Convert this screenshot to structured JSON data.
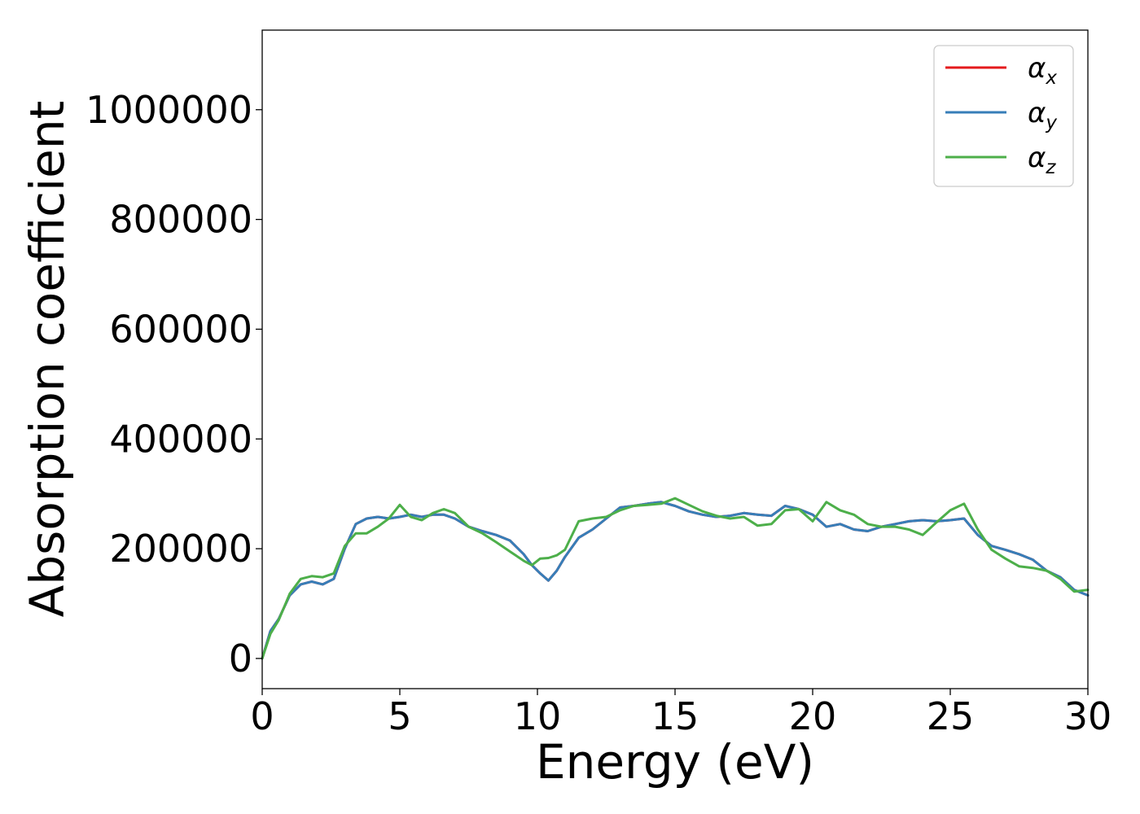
{
  "chart_data": {
    "type": "line",
    "title": "",
    "xlabel": "Energy (eV)",
    "ylabel": "Absorption coefficient",
    "xlim": [
      0,
      30
    ],
    "ylim": [
      -55000,
      1145000
    ],
    "xticks": [
      0,
      5,
      10,
      15,
      20,
      25,
      30
    ],
    "xtick_labels": [
      "0",
      "5",
      "10",
      "15",
      "20",
      "25",
      "30"
    ],
    "yticks": [
      0,
      200000,
      400000,
      600000,
      800000,
      1000000
    ],
    "ytick_labels": [
      "0",
      "200000",
      "400000",
      "600000",
      "800000",
      "1000000"
    ],
    "grid": false,
    "legend_position": "top-right",
    "series": [
      {
        "name": "α_x",
        "legend_symbol": "α",
        "legend_sub": "x",
        "color": "#e41a1c",
        "x": [
          0,
          0.3,
          0.6,
          1,
          1.4,
          1.8,
          2.2,
          2.6,
          3,
          3.4,
          3.8,
          4.2,
          4.6,
          5,
          5.4,
          5.8,
          6.2,
          6.6,
          7,
          7.5,
          8,
          8.5,
          9,
          9.5,
          9.8,
          10.1,
          10.4,
          10.7,
          11,
          11.5,
          12,
          12.5,
          13,
          13.5,
          14,
          14.5,
          15,
          15.5,
          16,
          16.5,
          17,
          17.5,
          18,
          18.5,
          19,
          19.5,
          20,
          20.5,
          21,
          21.5,
          22,
          22.5,
          23,
          23.5,
          24,
          24.5,
          25,
          25.5,
          26,
          26.5,
          27,
          27.5,
          28,
          28.5,
          29,
          29.5,
          30
        ],
        "values": [
          0,
          50000,
          72000,
          115000,
          135000,
          140000,
          135000,
          145000,
          200000,
          245000,
          255000,
          258000,
          255000,
          258000,
          262000,
          258000,
          262000,
          262000,
          255000,
          240000,
          232000,
          225000,
          215000,
          190000,
          170000,
          155000,
          142000,
          160000,
          185000,
          220000,
          235000,
          255000,
          275000,
          278000,
          282000,
          285000,
          278000,
          268000,
          262000,
          258000,
          260000,
          265000,
          262000,
          260000,
          278000,
          272000,
          262000,
          240000,
          245000,
          235000,
          232000,
          240000,
          245000,
          250000,
          252000,
          250000,
          252000,
          255000,
          225000,
          205000,
          198000,
          190000,
          180000,
          160000,
          148000,
          125000,
          115000
        ]
      },
      {
        "name": "α_y",
        "legend_symbol": "α",
        "legend_sub": "y",
        "color": "#377eb8",
        "x": [
          0,
          0.3,
          0.6,
          1,
          1.4,
          1.8,
          2.2,
          2.6,
          3,
          3.4,
          3.8,
          4.2,
          4.6,
          5,
          5.4,
          5.8,
          6.2,
          6.6,
          7,
          7.5,
          8,
          8.5,
          9,
          9.5,
          9.8,
          10.1,
          10.4,
          10.7,
          11,
          11.5,
          12,
          12.5,
          13,
          13.5,
          14,
          14.5,
          15,
          15.5,
          16,
          16.5,
          17,
          17.5,
          18,
          18.5,
          19,
          19.5,
          20,
          20.5,
          21,
          21.5,
          22,
          22.5,
          23,
          23.5,
          24,
          24.5,
          25,
          25.5,
          26,
          26.5,
          27,
          27.5,
          28,
          28.5,
          29,
          29.5,
          30
        ],
        "values": [
          0,
          50000,
          72000,
          115000,
          135000,
          140000,
          135000,
          145000,
          200000,
          245000,
          255000,
          258000,
          255000,
          258000,
          262000,
          258000,
          262000,
          262000,
          255000,
          240000,
          232000,
          225000,
          215000,
          190000,
          170000,
          155000,
          142000,
          160000,
          185000,
          220000,
          235000,
          255000,
          275000,
          278000,
          282000,
          285000,
          278000,
          268000,
          262000,
          258000,
          260000,
          265000,
          262000,
          260000,
          278000,
          272000,
          262000,
          240000,
          245000,
          235000,
          232000,
          240000,
          245000,
          250000,
          252000,
          250000,
          252000,
          255000,
          225000,
          205000,
          198000,
          190000,
          180000,
          160000,
          148000,
          125000,
          115000
        ]
      },
      {
        "name": "α_z",
        "legend_symbol": "α",
        "legend_sub": "z",
        "color": "#4daf4a",
        "x": [
          0,
          0.3,
          0.6,
          1,
          1.4,
          1.8,
          2.2,
          2.6,
          3,
          3.4,
          3.8,
          4.2,
          4.6,
          5,
          5.4,
          5.8,
          6.2,
          6.6,
          7,
          7.5,
          8,
          8.5,
          9,
          9.5,
          9.8,
          10.1,
          10.4,
          10.7,
          11,
          11.5,
          12,
          12.5,
          13,
          13.5,
          14,
          14.5,
          15,
          15.5,
          16,
          16.5,
          17,
          17.5,
          18,
          18.5,
          19,
          19.5,
          20,
          20.5,
          21,
          21.5,
          22,
          22.5,
          23,
          23.5,
          24,
          24.5,
          25,
          25.5,
          26,
          26.5,
          27,
          27.5,
          28,
          28.5,
          29,
          29.5,
          30
        ],
        "values": [
          0,
          45000,
          70000,
          118000,
          145000,
          150000,
          148000,
          155000,
          205000,
          228000,
          228000,
          240000,
          255000,
          280000,
          258000,
          252000,
          265000,
          272000,
          265000,
          240000,
          228000,
          212000,
          195000,
          178000,
          170000,
          182000,
          183000,
          188000,
          198000,
          250000,
          255000,
          258000,
          270000,
          278000,
          280000,
          282000,
          292000,
          280000,
          268000,
          260000,
          255000,
          258000,
          242000,
          245000,
          270000,
          272000,
          250000,
          285000,
          270000,
          262000,
          245000,
          240000,
          240000,
          235000,
          225000,
          248000,
          270000,
          282000,
          235000,
          198000,
          182000,
          168000,
          165000,
          160000,
          145000,
          122000,
          125000
        ]
      }
    ]
  }
}
